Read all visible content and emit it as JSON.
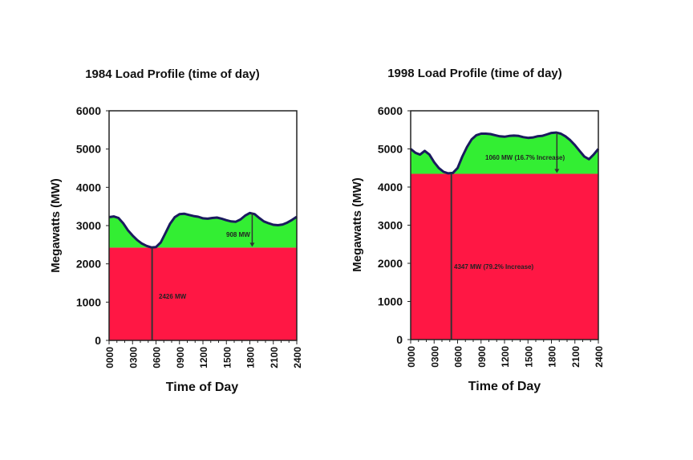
{
  "chart_data": [
    {
      "type": "area",
      "title": "1984 Load Profile (time of day)",
      "xlabel": "Time of Day",
      "ylabel": "Megawatts (MW)",
      "ylim": [
        0,
        6000
      ],
      "xlim": [
        0,
        2400
      ],
      "yticks": [
        "0",
        "1000",
        "2000",
        "3000",
        "4000",
        "5000",
        "6000"
      ],
      "xticks": [
        "0000",
        "0300",
        "0600",
        "0900",
        "1200",
        "1500",
        "1800",
        "2100",
        "2400"
      ],
      "grid": false,
      "base_load": 2426,
      "base_label": "2426 MW",
      "peak_increment_label": "908 MW",
      "min_time": 550,
      "peak_time": 1830,
      "colors": {
        "base": "#ff1744",
        "peak": "#33ee33",
        "line": "#1a1a5e"
      },
      "x": [
        0,
        60,
        120,
        180,
        240,
        300,
        360,
        420,
        480,
        540,
        600,
        660,
        720,
        780,
        840,
        900,
        960,
        1020,
        1080,
        1140,
        1200,
        1260,
        1320,
        1380,
        1440,
        1500,
        1560,
        1620,
        1680,
        1740,
        1800,
        1860,
        1920,
        1980,
        2040,
        2100,
        2160,
        2220,
        2280,
        2340,
        2400
      ],
      "y": [
        3220,
        3240,
        3200,
        3060,
        2880,
        2740,
        2620,
        2530,
        2470,
        2430,
        2440,
        2560,
        2800,
        3050,
        3220,
        3300,
        3310,
        3280,
        3250,
        3230,
        3190,
        3180,
        3200,
        3210,
        3180,
        3140,
        3110,
        3100,
        3160,
        3260,
        3330,
        3300,
        3200,
        3110,
        3060,
        3020,
        3010,
        3030,
        3080,
        3150,
        3230
      ]
    },
    {
      "type": "area",
      "title": "1998 Load Profile (time of day)",
      "xlabel": "Time of Day",
      "ylabel": "Megawatts (MW)",
      "ylim": [
        0,
        6000
      ],
      "xlim": [
        0,
        2400
      ],
      "yticks": [
        "0",
        "1000",
        "2000",
        "3000",
        "4000",
        "5000",
        "6000"
      ],
      "xticks": [
        "0000",
        "0300",
        "0600",
        "0900",
        "1200",
        "1500",
        "1800",
        "2100",
        "2400"
      ],
      "grid": false,
      "base_load": 4347,
      "base_label": "4347 MW (79.2% Increase)",
      "peak_increment_label": "1060 MW (16.7% Increase)",
      "min_time": 520,
      "peak_time": 1870,
      "colors": {
        "base": "#ff1744",
        "peak": "#33ee33",
        "line": "#1a1a5e"
      },
      "x": [
        0,
        60,
        120,
        180,
        240,
        300,
        360,
        420,
        480,
        540,
        600,
        660,
        720,
        780,
        840,
        900,
        960,
        1020,
        1080,
        1140,
        1200,
        1260,
        1320,
        1380,
        1440,
        1500,
        1560,
        1620,
        1680,
        1740,
        1800,
        1860,
        1920,
        1980,
        2040,
        2100,
        2160,
        2220,
        2280,
        2340,
        2400
      ],
      "y": [
        5000,
        4900,
        4850,
        4950,
        4850,
        4650,
        4500,
        4400,
        4360,
        4370,
        4500,
        4800,
        5050,
        5250,
        5360,
        5400,
        5400,
        5390,
        5360,
        5330,
        5320,
        5340,
        5350,
        5340,
        5310,
        5290,
        5300,
        5330,
        5340,
        5380,
        5420,
        5430,
        5400,
        5330,
        5230,
        5100,
        4950,
        4800,
        4730,
        4850,
        5000
      ]
    }
  ]
}
